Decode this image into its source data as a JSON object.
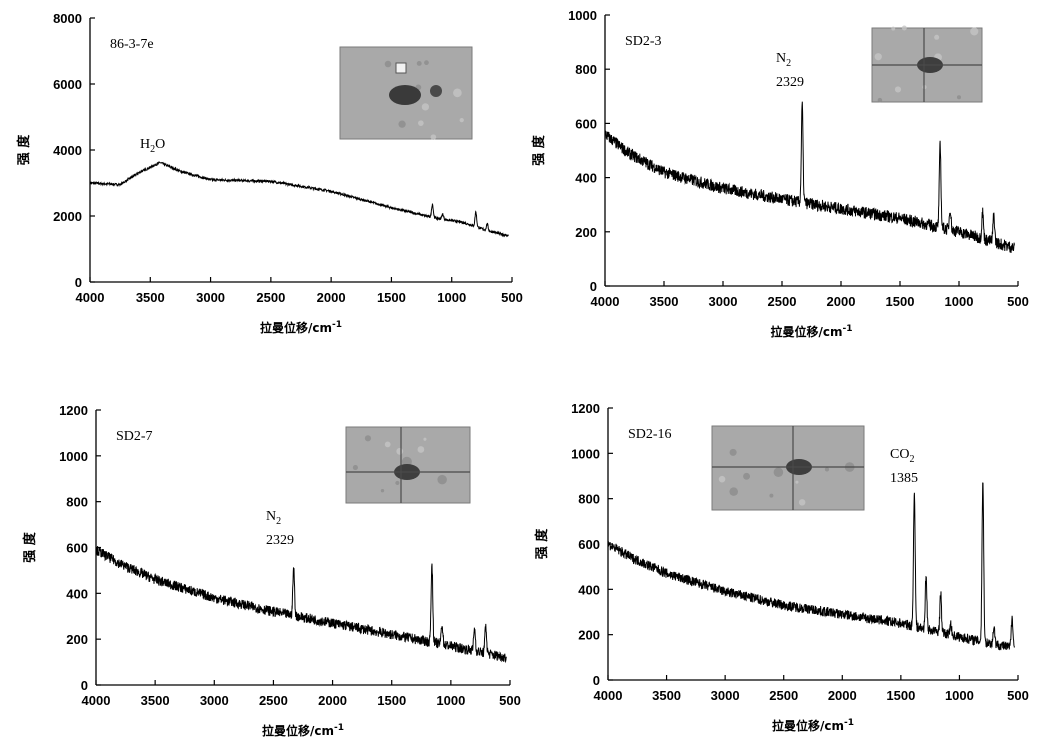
{
  "chart_data": [
    {
      "type": "line",
      "sample": "86-3-7e",
      "xlabel": "拉曼位移/cm",
      "xlabel_sup": "-1",
      "ylabel": "强 度",
      "xlim": [
        4000,
        500
      ],
      "ylim": [
        0,
        8000
      ],
      "xticks": [
        4000,
        3500,
        3000,
        2500,
        2000,
        1500,
        1000,
        500
      ],
      "yticks": [
        0,
        2000,
        4000,
        6000,
        8000
      ],
      "x_range": [
        4000,
        530
      ],
      "baseline": [
        [
          4000,
          3000
        ],
        [
          3750,
          2950
        ],
        [
          3600,
          3300
        ],
        [
          3420,
          3620
        ],
        [
          3250,
          3350
        ],
        [
          3000,
          3100
        ],
        [
          2500,
          3050
        ],
        [
          2000,
          2750
        ],
        [
          1500,
          2250
        ],
        [
          1150,
          1950
        ],
        [
          900,
          1800
        ],
        [
          700,
          1550
        ],
        [
          530,
          1400
        ]
      ],
      "noise": 35,
      "peaks": [
        [
          1160,
          400
        ],
        [
          1075,
          150
        ],
        [
          800,
          450
        ],
        [
          705,
          200
        ]
      ],
      "annotations": [
        {
          "label": "H",
          "sub": "2",
          "post": "O",
          "x": 3420,
          "y": 3700
        }
      ],
      "inset": "micrograph",
      "inset_crosshair": false
    },
    {
      "type": "line",
      "sample": "SD2-3",
      "xlabel": "拉曼位移/cm",
      "xlabel_sup": "-1",
      "ylabel": "强 度",
      "xlim": [
        4000,
        500
      ],
      "ylim": [
        0,
        1000
      ],
      "xticks": [
        4000,
        3500,
        3000,
        2500,
        2000,
        1500,
        1000,
        "500"
      ],
      "yticks": [
        0,
        200,
        400,
        600,
        800,
        1000
      ],
      "x_range": [
        4000,
        530
      ],
      "baseline": [
        [
          4000,
          560
        ],
        [
          3800,
          490
        ],
        [
          3500,
          420
        ],
        [
          3000,
          360
        ],
        [
          2500,
          320
        ],
        [
          2000,
          285
        ],
        [
          1500,
          250
        ],
        [
          1000,
          200
        ],
        [
          530,
          140
        ]
      ],
      "noise": 22,
      "peaks": [
        [
          2329,
          360
        ],
        [
          1160,
          300
        ],
        [
          1075,
          80
        ],
        [
          800,
          100
        ],
        [
          705,
          100
        ]
      ],
      "annotations": [
        {
          "label": "N",
          "sub": "2",
          "post": "",
          "value": "2329",
          "x": 2329
        }
      ],
      "inset": "micrograph",
      "inset_crosshair": true
    },
    {
      "type": "line",
      "sample": "SD2-7",
      "xlabel": "拉曼位移/cm",
      "xlabel_sup": "-1",
      "ylabel": "强 度",
      "xlim": [
        4000,
        500
      ],
      "ylim": [
        0,
        1200
      ],
      "xticks": [
        4000,
        3500,
        3000,
        2500,
        2000,
        1500,
        1000,
        500
      ],
      "yticks": [
        0,
        200,
        400,
        600,
        800,
        1000,
        1200
      ],
      "x_range": [
        4000,
        530
      ],
      "baseline": [
        [
          4000,
          590
        ],
        [
          3800,
          530
        ],
        [
          3500,
          460
        ],
        [
          3000,
          380
        ],
        [
          2500,
          320
        ],
        [
          2000,
          270
        ],
        [
          1500,
          220
        ],
        [
          1000,
          170
        ],
        [
          530,
          120
        ]
      ],
      "noise": 22,
      "peaks": [
        [
          2329,
          210
        ],
        [
          1160,
          340
        ],
        [
          1075,
          90
        ],
        [
          800,
          100
        ],
        [
          705,
          120
        ]
      ],
      "annotations": [
        {
          "label": "N",
          "sub": "2",
          "post": "",
          "value": "2329",
          "x": 2329
        }
      ],
      "inset": "micrograph",
      "inset_crosshair": true
    },
    {
      "type": "line",
      "sample": "SD2-16",
      "xlabel": "拉曼位移/cm",
      "xlabel_sup": "-1",
      "ylabel": "强 度",
      "xlim": [
        4000,
        500
      ],
      "ylim": [
        0,
        1200
      ],
      "xticks": [
        4000,
        3500,
        3000,
        2500,
        2000,
        1500,
        1000,
        "500"
      ],
      "yticks": [
        0,
        200,
        400,
        600,
        800,
        1000,
        1200
      ],
      "x_range": [
        4000,
        530
      ],
      "baseline": [
        [
          4000,
          600
        ],
        [
          3800,
          540
        ],
        [
          3500,
          470
        ],
        [
          3000,
          390
        ],
        [
          2500,
          330
        ],
        [
          2000,
          290
        ],
        [
          1500,
          250
        ],
        [
          1000,
          190
        ],
        [
          530,
          140
        ]
      ],
      "noise": 22,
      "peaks": [
        [
          1385,
          600
        ],
        [
          1285,
          230
        ],
        [
          1160,
          170
        ],
        [
          1075,
          50
        ],
        [
          800,
          720
        ],
        [
          705,
          80
        ],
        [
          550,
          140
        ]
      ],
      "annotations": [
        {
          "label": "CO",
          "sub": "2",
          "post": "",
          "value": "1385",
          "x": 1385
        }
      ],
      "inset": "micrograph",
      "inset_crosshair": true
    }
  ]
}
